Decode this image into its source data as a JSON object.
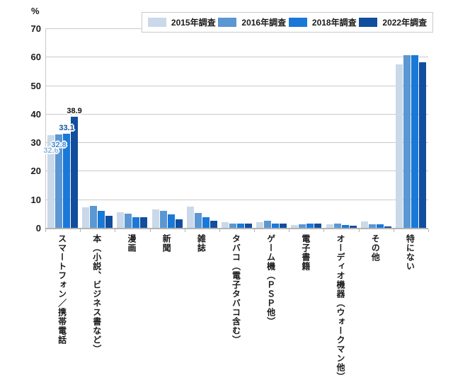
{
  "page": {
    "background": "#ffffff"
  },
  "chart_data": {
    "type": "bar",
    "title": "",
    "y_unit_label": "%",
    "xlabel": "",
    "ylabel": "%",
    "ylim": [
      0,
      70
    ],
    "ytick_step": 10,
    "grid": true,
    "legend_position": "top",
    "categories": [
      "スマートフォン／携帯電話",
      "本（小説、ビジネス書など）",
      "漫画",
      "新聞",
      "雑誌",
      "タバコ（電子タバコ含む）",
      "ゲーム機（ＰＳＰ他）",
      "電子書籍",
      "オーディオ機器（ウォークマン他）",
      "その他",
      "特にない"
    ],
    "series": [
      {
        "name": "2015年調査",
        "color": "#c9d9ea",
        "values": [
          32.6,
          7.3,
          5.5,
          6.5,
          7.5,
          1.9,
          1.9,
          1.1,
          1.3,
          2.2,
          57.3
        ]
      },
      {
        "name": "2016年調査",
        "color": "#5b97d2",
        "values": [
          32.8,
          7.6,
          5.0,
          6.0,
          5.3,
          1.5,
          2.6,
          1.3,
          1.5,
          1.3,
          60.6
        ]
      },
      {
        "name": "2018年調査",
        "color": "#1a78d8",
        "values": [
          33.1,
          5.9,
          3.8,
          4.7,
          3.7,
          1.5,
          1.4,
          1.4,
          0.9,
          1.2,
          60.6
        ]
      },
      {
        "name": "2022年調査",
        "color": "#114e9e",
        "values": [
          38.9,
          4.3,
          3.6,
          2.9,
          2.6,
          1.4,
          1.4,
          1.5,
          0.7,
          0.6,
          58.2
        ]
      }
    ],
    "value_labels": [
      {
        "text": "32.6",
        "series": 0,
        "category": 0,
        "color": "#8fb6dc",
        "dy": 16
      },
      {
        "text": "32.8",
        "series": 1,
        "category": 0,
        "color": "#4189d4",
        "dy": 9
      },
      {
        "text": "33.1",
        "series": 2,
        "category": 0,
        "color": "#10519f",
        "dy": -14
      },
      {
        "text": "38.9",
        "series": 3,
        "category": 0,
        "color": "#111111",
        "dy": -14
      }
    ],
    "colors": {
      "gridline": "#c9c9c9",
      "axis": "#b3b3b3",
      "text": "#1a1a1a",
      "legend_border": "#c9c9c9"
    }
  }
}
